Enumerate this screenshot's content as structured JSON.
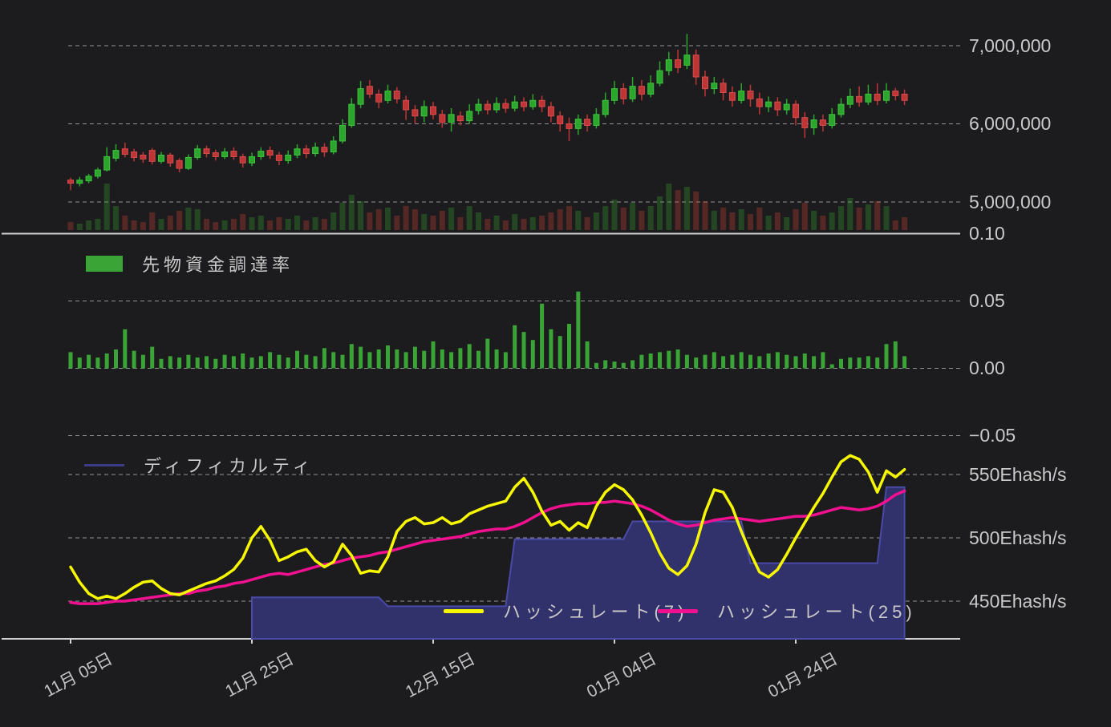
{
  "style": {
    "background": "#1c1c1e",
    "text_color": "#c9c9c9",
    "grid_color": "#a8a8a8",
    "axis_line_color": "#d2d2d2"
  },
  "x_axis": {
    "ticks": [
      {
        "label": "11月 05日",
        "index": 0
      },
      {
        "label": "11月 25日",
        "index": 20
      },
      {
        "label": "12月 15日",
        "index": 40
      },
      {
        "label": "01月 04日",
        "index": 60
      },
      {
        "label": "01月 24日",
        "index": 80
      }
    ]
  },
  "legends": {
    "funding": {
      "label": "先物資金調達率",
      "swatch_color": "#3aa437"
    },
    "difficulty": {
      "label": "ディフィカルティ",
      "swatch_color": "#3d3d85"
    },
    "hashrate7": {
      "label": "ハッシュレート(7)",
      "swatch_color": "#f7f700"
    },
    "hashrate25": {
      "label": "ハッシュレート(25)",
      "swatch_color": "#f01090"
    }
  },
  "chart_data": [
    {
      "type": "candlestick",
      "name": "price-with-volume",
      "yticks": [
        {
          "label": "7,000,000",
          "value": 7000000
        },
        {
          "label": "6,000,000",
          "value": 6000000
        },
        {
          "label": "5,000,000",
          "value": 5000000
        }
      ],
      "colors": {
        "up": "#2ca52c",
        "up_stroke": "#3ec43e",
        "down": "#bf3434",
        "down_stroke": "#d44e4e",
        "volume_up": "rgba(56,160,48,0.32)",
        "volume_down": "rgba(204,64,52,0.32)"
      },
      "candles_format": [
        "open_M_JPY",
        "high",
        "low",
        "close",
        "volume_rel"
      ],
      "candles": [
        [
          5.28,
          5.31,
          5.15,
          5.24,
          10
        ],
        [
          5.24,
          5.32,
          5.2,
          5.28,
          8
        ],
        [
          5.27,
          5.36,
          5.24,
          5.33,
          12
        ],
        [
          5.33,
          5.44,
          5.3,
          5.41,
          14
        ],
        [
          5.41,
          5.7,
          5.39,
          5.58,
          58
        ],
        [
          5.56,
          5.74,
          5.52,
          5.66,
          30
        ],
        [
          5.68,
          5.76,
          5.57,
          5.61,
          18
        ],
        [
          5.64,
          5.68,
          5.52,
          5.57,
          12
        ],
        [
          5.6,
          5.64,
          5.5,
          5.55,
          10
        ],
        [
          5.66,
          5.69,
          5.48,
          5.52,
          22
        ],
        [
          5.52,
          5.64,
          5.49,
          5.6,
          14
        ],
        [
          5.6,
          5.63,
          5.45,
          5.5,
          18
        ],
        [
          5.53,
          5.56,
          5.38,
          5.43,
          24
        ],
        [
          5.43,
          5.61,
          5.41,
          5.57,
          28
        ],
        [
          5.57,
          5.73,
          5.54,
          5.68,
          26
        ],
        [
          5.68,
          5.72,
          5.57,
          5.62,
          14
        ],
        [
          5.63,
          5.67,
          5.53,
          5.58,
          10
        ],
        [
          5.58,
          5.69,
          5.55,
          5.64,
          12
        ],
        [
          5.65,
          5.7,
          5.54,
          5.58,
          14
        ],
        [
          5.58,
          5.62,
          5.44,
          5.5,
          20
        ],
        [
          5.5,
          5.63,
          5.46,
          5.58,
          16
        ],
        [
          5.58,
          5.7,
          5.54,
          5.65,
          18
        ],
        [
          5.66,
          5.71,
          5.55,
          5.6,
          12
        ],
        [
          5.6,
          5.64,
          5.47,
          5.53,
          16
        ],
        [
          5.53,
          5.66,
          5.49,
          5.6,
          14
        ],
        [
          5.6,
          5.74,
          5.56,
          5.68,
          18
        ],
        [
          5.68,
          5.73,
          5.56,
          5.62,
          12
        ],
        [
          5.62,
          5.76,
          5.58,
          5.7,
          16
        ],
        [
          5.7,
          5.75,
          5.58,
          5.64,
          14
        ],
        [
          5.64,
          5.84,
          5.61,
          5.78,
          22
        ],
        [
          5.78,
          6.06,
          5.75,
          5.98,
          34
        ],
        [
          5.98,
          6.33,
          5.95,
          6.25,
          44
        ],
        [
          6.25,
          6.55,
          6.2,
          6.45,
          36
        ],
        [
          6.48,
          6.56,
          6.33,
          6.38,
          22
        ],
        [
          6.38,
          6.44,
          6.2,
          6.28,
          26
        ],
        [
          6.3,
          6.5,
          6.26,
          6.42,
          28
        ],
        [
          6.42,
          6.47,
          6.26,
          6.32,
          18
        ],
        [
          6.3,
          6.36,
          6.05,
          6.18,
          30
        ],
        [
          6.18,
          6.24,
          6.0,
          6.1,
          26
        ],
        [
          6.1,
          6.3,
          6.02,
          6.22,
          20
        ],
        [
          6.22,
          6.28,
          6.06,
          6.12,
          18
        ],
        [
          6.12,
          6.18,
          5.95,
          6.02,
          24
        ],
        [
          6.02,
          6.2,
          5.9,
          6.12,
          28
        ],
        [
          6.1,
          6.16,
          5.98,
          6.04,
          16
        ],
        [
          6.04,
          6.25,
          6.0,
          6.16,
          30
        ],
        [
          6.17,
          6.32,
          6.12,
          6.25,
          22
        ],
        [
          6.25,
          6.3,
          6.12,
          6.18,
          14
        ],
        [
          6.18,
          6.34,
          6.14,
          6.26,
          18
        ],
        [
          6.26,
          6.32,
          6.14,
          6.2,
          12
        ],
        [
          6.2,
          6.36,
          6.16,
          6.28,
          20
        ],
        [
          6.28,
          6.34,
          6.16,
          6.22,
          14
        ],
        [
          6.22,
          6.38,
          6.18,
          6.3,
          16
        ],
        [
          6.3,
          6.36,
          6.15,
          6.22,
          18
        ],
        [
          6.22,
          6.28,
          6.02,
          6.1,
          22
        ],
        [
          6.1,
          6.16,
          5.9,
          6.0,
          26
        ],
        [
          6.0,
          6.08,
          5.78,
          5.94,
          30
        ],
        [
          5.94,
          6.12,
          5.86,
          6.06,
          24
        ],
        [
          6.06,
          6.12,
          5.9,
          5.98,
          16
        ],
        [
          5.98,
          6.2,
          5.94,
          6.12,
          22
        ],
        [
          6.12,
          6.4,
          6.08,
          6.3,
          30
        ],
        [
          6.3,
          6.55,
          6.25,
          6.45,
          38
        ],
        [
          6.45,
          6.52,
          6.25,
          6.32,
          28
        ],
        [
          6.32,
          6.6,
          6.28,
          6.48,
          34
        ],
        [
          6.48,
          6.56,
          6.3,
          6.38,
          24
        ],
        [
          6.38,
          6.62,
          6.34,
          6.52,
          30
        ],
        [
          6.52,
          6.8,
          6.48,
          6.68,
          42
        ],
        [
          6.68,
          6.92,
          6.62,
          6.82,
          58
        ],
        [
          6.82,
          6.95,
          6.65,
          6.72,
          50
        ],
        [
          6.75,
          7.15,
          6.7,
          6.88,
          54
        ],
        [
          6.88,
          6.95,
          6.5,
          6.6,
          48
        ],
        [
          6.6,
          6.68,
          6.35,
          6.45,
          36
        ],
        [
          6.45,
          6.6,
          6.38,
          6.52,
          24
        ],
        [
          6.52,
          6.58,
          6.3,
          6.4,
          28
        ],
        [
          6.4,
          6.48,
          6.22,
          6.3,
          22
        ],
        [
          6.3,
          6.52,
          6.26,
          6.42,
          26
        ],
        [
          6.42,
          6.5,
          6.22,
          6.32,
          20
        ],
        [
          6.32,
          6.4,
          6.12,
          6.22,
          28
        ],
        [
          6.22,
          6.35,
          6.15,
          6.28,
          18
        ],
        [
          6.28,
          6.34,
          6.1,
          6.18,
          22
        ],
        [
          6.18,
          6.32,
          6.12,
          6.25,
          16
        ],
        [
          6.25,
          6.3,
          5.98,
          6.08,
          26
        ],
        [
          6.08,
          6.15,
          5.82,
          5.95,
          34
        ],
        [
          5.95,
          6.12,
          5.86,
          6.05,
          24
        ],
        [
          6.05,
          6.12,
          5.9,
          5.98,
          18
        ],
        [
          5.98,
          6.2,
          5.94,
          6.12,
          22
        ],
        [
          6.12,
          6.33,
          6.08,
          6.25,
          30
        ],
        [
          6.25,
          6.45,
          6.2,
          6.35,
          40
        ],
        [
          6.35,
          6.48,
          6.22,
          6.28,
          28
        ],
        [
          6.28,
          6.5,
          6.24,
          6.38,
          32
        ],
        [
          6.38,
          6.52,
          6.24,
          6.3,
          36
        ],
        [
          6.3,
          6.52,
          6.26,
          6.42,
          30
        ],
        [
          6.42,
          6.46,
          6.3,
          6.36,
          12
        ],
        [
          6.38,
          6.44,
          6.24,
          6.3,
          16
        ]
      ]
    },
    {
      "type": "bar",
      "name": "先物資金調達率",
      "color": "#3aa437",
      "yticks": [
        {
          "label": "0.10",
          "value": 0.1
        },
        {
          "label": "0.05",
          "value": 0.05
        },
        {
          "label": "0.00",
          "value": 0.0
        },
        {
          "label": "−0.05",
          "value": -0.05
        }
      ],
      "values": [
        0.012,
        0.008,
        0.01,
        0.008,
        0.011,
        0.014,
        0.029,
        0.013,
        0.01,
        0.016,
        0.007,
        0.009,
        0.008,
        0.01,
        0.008,
        0.009,
        0.007,
        0.01,
        0.009,
        0.011,
        0.008,
        0.009,
        0.012,
        0.01,
        0.008,
        0.013,
        0.01,
        0.009,
        0.015,
        0.012,
        0.01,
        0.018,
        0.016,
        0.012,
        0.014,
        0.017,
        0.014,
        0.012,
        0.016,
        0.013,
        0.02,
        0.014,
        0.012,
        0.015,
        0.018,
        0.013,
        0.022,
        0.014,
        0.012,
        0.032,
        0.027,
        0.021,
        0.048,
        0.029,
        0.024,
        0.033,
        0.057,
        0.02,
        0.004,
        0.006,
        0.005,
        0.004,
        0.006,
        0.01,
        0.011,
        0.012,
        0.013,
        0.014,
        0.01,
        0.008,
        0.01,
        0.012,
        0.009,
        0.01,
        0.012,
        0.01,
        0.009,
        0.011,
        0.012,
        0.01,
        0.009,
        0.011,
        0.009,
        0.012,
        0.003,
        0.007,
        0.008,
        0.008,
        0.009,
        0.008,
        0.018,
        0.02,
        0.009
      ]
    },
    {
      "type": "line-area",
      "name": "hashrate-difficulty",
      "yticks": [
        {
          "label": "550Ehash/s",
          "value": 550
        },
        {
          "label": "500Ehash/s",
          "value": 500
        },
        {
          "label": "450Ehash/s",
          "value": 450
        }
      ],
      "series": [
        {
          "name": "ディフィカルティ",
          "kind": "step-area",
          "color": "#4a4aa8",
          "fill": "#31316b",
          "values": [
            null,
            null,
            null,
            null,
            null,
            null,
            null,
            null,
            null,
            null,
            null,
            null,
            null,
            null,
            null,
            null,
            null,
            null,
            null,
            null,
            453,
            453,
            453,
            453,
            453,
            453,
            453,
            453,
            453,
            453,
            453,
            453,
            453,
            453,
            453,
            446,
            446,
            446,
            446,
            446,
            446,
            446,
            446,
            446,
            446,
            446,
            446,
            446,
            446,
            499,
            499,
            499,
            499,
            499,
            499,
            499,
            499,
            499,
            499,
            499,
            499,
            499,
            513,
            513,
            513,
            513,
            513,
            513,
            513,
            513,
            513,
            513,
            513,
            513,
            513,
            480,
            480,
            480,
            480,
            480,
            480,
            480,
            480,
            480,
            480,
            480,
            480,
            480,
            480,
            480,
            540,
            540,
            540
          ]
        },
        {
          "name": "ハッシュレート(7)",
          "kind": "line",
          "color": "#f7f700",
          "values": [
            477,
            465,
            456,
            452,
            454,
            452,
            456,
            461,
            465,
            466,
            460,
            456,
            455,
            458,
            461,
            464,
            466,
            470,
            475,
            484,
            500,
            509,
            498,
            482,
            485,
            489,
            491,
            482,
            477,
            481,
            495,
            486,
            472,
            474,
            473,
            485,
            505,
            513,
            516,
            511,
            512,
            516,
            511,
            513,
            519,
            522,
            525,
            527,
            529,
            540,
            547,
            536,
            521,
            510,
            513,
            506,
            512,
            508,
            525,
            536,
            542,
            538,
            530,
            518,
            504,
            488,
            476,
            471,
            478,
            495,
            520,
            538,
            536,
            524,
            505,
            488,
            473,
            469,
            475,
            487,
            500,
            512,
            524,
            535,
            548,
            560,
            565,
            562,
            552,
            536,
            553,
            548,
            554
          ]
        },
        {
          "name": "ハッシュレート(25)",
          "kind": "line",
          "color": "#f01090",
          "values": [
            449,
            448,
            448,
            448,
            449,
            450,
            450,
            451,
            452,
            453,
            454,
            455,
            456,
            456,
            458,
            459,
            461,
            462,
            464,
            465,
            467,
            469,
            471,
            472,
            471,
            473,
            475,
            477,
            479,
            480,
            482,
            484,
            485,
            486,
            488,
            489,
            491,
            493,
            495,
            497,
            498,
            499,
            500,
            501,
            503,
            505,
            506,
            507,
            507,
            509,
            512,
            516,
            520,
            523,
            525,
            526,
            527,
            527,
            528,
            528,
            529,
            528,
            527,
            525,
            522,
            518,
            514,
            511,
            509,
            510,
            512,
            514,
            515,
            516,
            515,
            514,
            513,
            514,
            515,
            516,
            517,
            517,
            518,
            520,
            522,
            524,
            523,
            522,
            523,
            525,
            529,
            534,
            537
          ]
        }
      ]
    }
  ]
}
